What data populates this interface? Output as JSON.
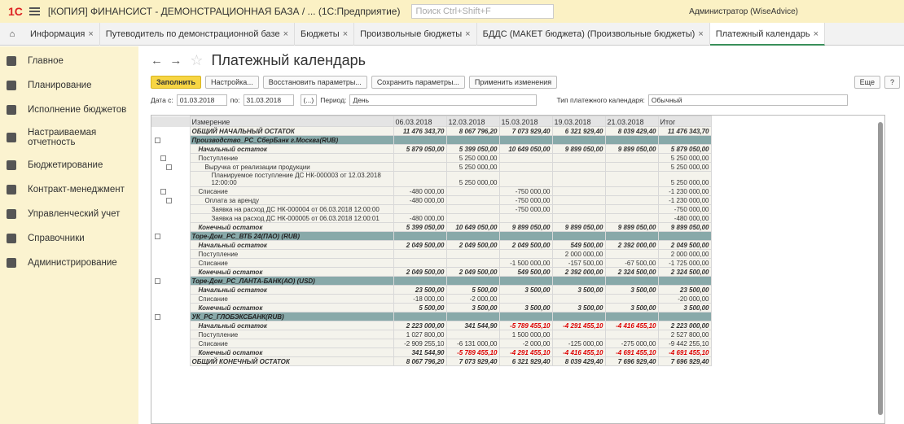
{
  "window": {
    "logo": "1С",
    "title": "[КОПИЯ] ФИНАНСИСТ - ДЕМОНСТРАЦИОННАЯ БАЗА / ...  (1С:Предприятие)",
    "search": "Поиск Ctrl+Shift+F",
    "user": "Администратор (WiseAdvice)"
  },
  "tabs": [
    "Информация",
    "Путеводитель по демонстрационной базе",
    "Бюджеты",
    "Произвольные бюджеты",
    "БДДС (МАКЕТ бюджета) (Произвольные бюджеты)",
    "Платежный календарь"
  ],
  "menu": [
    "Главное",
    "Планирование",
    "Исполнение бюджетов",
    "Настраиваемая отчетность",
    "Бюджетирование",
    "Контракт-менеджмент",
    "Управленческий учет",
    "Справочники",
    "Администрирование"
  ],
  "form": {
    "title": "Платежный календарь",
    "buttons": {
      "fill": "Заполнить",
      "settings": "Настройка...",
      "restore": "Восстановить параметры...",
      "save": "Сохранить параметры...",
      "apply": "Применить изменения",
      "more": "Еще",
      "help": "?"
    },
    "filters": {
      "date_from_label": "Дата с:",
      "date_from": "01.03.2018",
      "date_to_label": "по:",
      "date_to": "31.03.2018",
      "period_button": "(...)",
      "period_label": "Период:",
      "period": "День",
      "type_label": "Тип платежного календаря:",
      "type": "Обычный"
    }
  },
  "table": {
    "columns": [
      "Измерение",
      "06.03.2018",
      "12.03.2018",
      "15.03.2018",
      "19.03.2018",
      "21.03.2018",
      "Итог"
    ],
    "rows": [
      {
        "label": "ОБЩИЙ НАЧАЛЬНЫЙ ОСТАТОК",
        "style": "total",
        "level": 0,
        "values": [
          "11 476 343,70",
          "8 067 796,20",
          "7 073 929,40",
          "6 321 929,40",
          "8 039 429,40",
          "11 476 343,70"
        ]
      },
      {
        "label": "Производство_РС_СберБанк г.Москва(RUB)",
        "style": "group",
        "level": 0,
        "values": null
      },
      {
        "label": "Начальный остаток",
        "style": "balance",
        "level": 1,
        "values": [
          "5 879 050,00",
          "5 399 050,00",
          "10 649 050,00",
          "9 899 050,00",
          "9 899 050,00",
          "5 879 050,00"
        ]
      },
      {
        "label": "Поступление",
        "style": "item",
        "level": 1,
        "values": [
          null,
          "5 250 000,00",
          null,
          null,
          null,
          "5 250 000,00"
        ]
      },
      {
        "label": "Выручка от реализации продукции",
        "style": "item",
        "level": 2,
        "values": [
          null,
          "5 250 000,00",
          null,
          null,
          null,
          "5 250 000,00"
        ]
      },
      {
        "label": "Планируемое поступление ДС НК-000003 от 12.03.2018 12:00:00",
        "style": "item",
        "level": 3,
        "values": [
          null,
          "5 250 000,00",
          null,
          null,
          null,
          "5 250 000,00"
        ]
      },
      {
        "label": "Списание",
        "style": "item",
        "level": 1,
        "values": [
          "-480 000,00",
          null,
          "-750 000,00",
          null,
          null,
          "-1 230 000,00"
        ]
      },
      {
        "label": "Оплата за аренду",
        "style": "item",
        "level": 2,
        "values": [
          "-480 000,00",
          null,
          "-750 000,00",
          null,
          null,
          "-1 230 000,00"
        ]
      },
      {
        "label": "Заявка на расход ДС НК-000004 от 06.03.2018 12:00:00",
        "style": "item",
        "level": 3,
        "values": [
          null,
          null,
          "-750 000,00",
          null,
          null,
          "-750 000,00"
        ]
      },
      {
        "label": "Заявка на расход ДС НК-000005 от 06.03.2018 12:00:01",
        "style": "item",
        "level": 3,
        "values": [
          "-480 000,00",
          null,
          null,
          null,
          null,
          "-480 000,00"
        ]
      },
      {
        "label": "Конечный остаток",
        "style": "balance",
        "level": 1,
        "values": [
          "5 399 050,00",
          "10 649 050,00",
          "9 899 050,00",
          "9 899 050,00",
          "9 899 050,00",
          "9 899 050,00"
        ]
      },
      {
        "label": "Торе-Дом_РС_ВТБ 24(ПАО) (RUB)",
        "style": "group",
        "level": 0,
        "values": null
      },
      {
        "label": "Начальный остаток",
        "style": "balance",
        "level": 1,
        "values": [
          "2 049 500,00",
          "2 049 500,00",
          "2 049 500,00",
          "549 500,00",
          "2 392 000,00",
          "2 049 500,00"
        ]
      },
      {
        "label": "Поступление",
        "style": "item",
        "level": 1,
        "values": [
          null,
          null,
          null,
          "2 000 000,00",
          null,
          "2 000 000,00"
        ]
      },
      {
        "label": "Списание",
        "style": "item",
        "level": 1,
        "values": [
          null,
          null,
          "-1 500 000,00",
          "-157 500,00",
          "-67 500,00",
          "-1 725 000,00"
        ]
      },
      {
        "label": "Конечный остаток",
        "style": "balance",
        "level": 1,
        "values": [
          "2 049 500,00",
          "2 049 500,00",
          "549 500,00",
          "2 392 000,00",
          "2 324 500,00",
          "2 324 500,00"
        ]
      },
      {
        "label": "Торе-Дом_РС_ЛАНТА-БАНК(АО) (USD)",
        "style": "group",
        "level": 0,
        "values": null
      },
      {
        "label": "Начальный остаток",
        "style": "balance",
        "level": 1,
        "values": [
          "23 500,00",
          "5 500,00",
          "3 500,00",
          "3 500,00",
          "3 500,00",
          "23 500,00"
        ]
      },
      {
        "label": "Списание",
        "style": "item",
        "level": 1,
        "values": [
          "-18 000,00",
          "-2 000,00",
          null,
          null,
          null,
          "-20 000,00"
        ]
      },
      {
        "label": "Конечный остаток",
        "style": "balance",
        "level": 1,
        "values": [
          "5 500,00",
          "3 500,00",
          "3 500,00",
          "3 500,00",
          "3 500,00",
          "3 500,00"
        ]
      },
      {
        "label": "УК_РС_ГЛОБЭКСБАНК(RUB)",
        "style": "group",
        "level": 0,
        "values": null
      },
      {
        "label": "Начальный остаток",
        "style": "balance",
        "level": 1,
        "values": [
          "2 223 000,00",
          "341 544,90",
          "-5 789 455,10",
          "-4 291 455,10",
          "-4 416 455,10",
          "2 223 000,00"
        ]
      },
      {
        "label": "Поступление",
        "style": "item",
        "level": 1,
        "values": [
          "1 027 800,00",
          null,
          "1 500 000,00",
          null,
          null,
          "2 527 800,00"
        ]
      },
      {
        "label": "Списание",
        "style": "item",
        "level": 1,
        "values": [
          "-2 909 255,10",
          "-6 131 000,00",
          "-2 000,00",
          "-125 000,00",
          "-275 000,00",
          "-9 442 255,10"
        ]
      },
      {
        "label": "Конечный остаток",
        "style": "balance",
        "level": 1,
        "values": [
          "341 544,90",
          "-5 789 455,10",
          "-4 291 455,10",
          "-4 416 455,10",
          "-4 691 455,10",
          "-4 691 455,10"
        ]
      },
      {
        "label": "ОБЩИЙ КОНЕЧНЫЙ ОСТАТОК",
        "style": "total",
        "level": 0,
        "values": [
          "8 067 796,20",
          "7 073 929,40",
          "6 321 929,40",
          "8 039 429,40",
          "7 696 929,40",
          "7 696 929,40"
        ]
      }
    ]
  }
}
